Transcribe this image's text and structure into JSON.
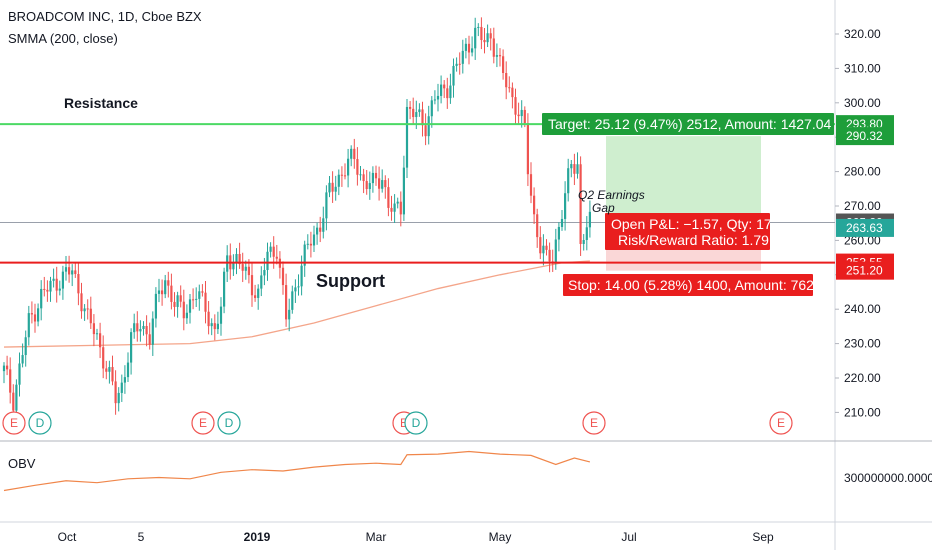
{
  "header": {
    "title": "BROADCOM INC, 1D, Cboe BZX",
    "indicator": "SMMA (200, close)"
  },
  "obv_panel": {
    "label": "OBV",
    "value_label": "300000000.0000"
  },
  "colors": {
    "up": "#26a69a",
    "down": "#ef5350",
    "resistance": "#4cd964",
    "support": "#e91e1e",
    "smma": "#f4a58a",
    "obv": "#f0864a",
    "target_fill": "#bfe8bf",
    "stop_fill": "#f8c9c9",
    "target_tag": "#1e9e3a",
    "stop_tag": "#e91e1e"
  },
  "annotations": {
    "resistance": "Resistance",
    "support": "Support",
    "target": "Target: 25.12 (9.47%) 2512, Amount: 1427.04",
    "pnl_line1": "Open P&L: −1.57, Qty: 17",
    "pnl_line2": "Risk/Reward Ratio: 1.79",
    "stop": "Stop: 14.00 (5.28%) 1400, Amount: 762",
    "earnings_line1": "Q2 Earnings",
    "earnings_line2": "Gap"
  },
  "events": [
    "E",
    "D",
    "E",
    "D",
    "E",
    "D",
    "E",
    "E"
  ],
  "chart_data": {
    "type": "candlestick",
    "title": "BROADCOM INC, 1D, Cboe BZX",
    "y_ticks": [
      210,
      220,
      230,
      240,
      250,
      260,
      270,
      280,
      290,
      300,
      310,
      320
    ],
    "y_tick_labels": [
      "210.00",
      "220.00",
      "230.00",
      "240.00",
      "250.00",
      "260.00",
      "270.00",
      "280.00",
      "290.00",
      "300.00",
      "310.00",
      "320.00"
    ],
    "x_tick_labels": [
      "Oct",
      "5",
      "2019",
      "Mar",
      "May",
      "Jul",
      "Sep"
    ],
    "price_tags": [
      {
        "value": 293.8,
        "label": "293.80",
        "color": "#1e9e3a"
      },
      {
        "value": 290.32,
        "label": "290.32",
        "color": "#1e9e3a"
      },
      {
        "value": 265.2,
        "label": "265.20",
        "color": "#555555"
      },
      {
        "value": 263.63,
        "label": "263.63",
        "color": "#26a69a"
      },
      {
        "value": 253.55,
        "label": "253.55",
        "color": "#e91e1e"
      },
      {
        "value": 251.2,
        "label": "251.20",
        "color": "#e91e1e"
      }
    ],
    "resistance": 293.8,
    "support": 253.55,
    "position": {
      "entry": 265.2,
      "target": 290.32,
      "stop": 251.2
    },
    "price_path": [
      [
        0,
        222
      ],
      [
        3,
        214
      ],
      [
        8,
        236
      ],
      [
        12,
        244
      ],
      [
        18,
        249
      ],
      [
        22,
        251
      ],
      [
        24,
        246
      ],
      [
        27,
        237
      ],
      [
        30,
        232
      ],
      [
        33,
        223
      ],
      [
        36,
        214
      ],
      [
        38,
        218
      ],
      [
        41,
        231
      ],
      [
        44,
        236
      ],
      [
        47,
        232
      ],
      [
        50,
        245
      ],
      [
        52,
        249
      ],
      [
        55,
        241
      ],
      [
        58,
        240
      ],
      [
        62,
        244
      ],
      [
        65,
        241
      ],
      [
        68,
        233
      ],
      [
        70,
        240
      ],
      [
        72,
        256
      ],
      [
        75,
        254
      ],
      [
        79,
        249
      ],
      [
        82,
        244
      ],
      [
        85,
        256
      ],
      [
        88,
        258
      ],
      [
        91,
        237
      ],
      [
        93,
        244
      ],
      [
        96,
        253
      ],
      [
        99,
        260
      ],
      [
        102,
        265
      ],
      [
        105,
        274
      ],
      [
        109,
        280
      ],
      [
        113,
        284
      ],
      [
        116,
        277
      ],
      [
        119,
        276
      ],
      [
        122,
        279
      ],
      [
        124,
        270
      ],
      [
        126,
        268
      ],
      [
        128,
        270
      ],
      [
        130,
        298
      ],
      [
        133,
        296
      ],
      [
        136,
        294
      ],
      [
        139,
        301
      ],
      [
        143,
        305
      ],
      [
        146,
        310
      ],
      [
        149,
        316
      ],
      [
        152,
        320
      ],
      [
        155,
        318
      ],
      [
        157,
        320
      ],
      [
        160,
        310
      ],
      [
        163,
        304
      ],
      [
        166,
        297
      ],
      [
        168,
        292
      ],
      [
        169,
        281
      ],
      [
        171,
        267
      ],
      [
        173,
        258
      ],
      [
        175,
        254
      ],
      [
        177,
        256
      ],
      [
        180,
        268
      ],
      [
        183,
        282
      ],
      [
        185,
        283
      ],
      [
        186,
        258
      ],
      [
        188,
        264
      ],
      [
        189,
        265.2
      ]
    ],
    "smma": [
      [
        0,
        229
      ],
      [
        60,
        230
      ],
      [
        80,
        232
      ],
      [
        100,
        236
      ],
      [
        120,
        241
      ],
      [
        140,
        246
      ],
      [
        160,
        250
      ],
      [
        180,
        253.5
      ],
      [
        189,
        254
      ]
    ],
    "obv": [
      [
        0,
        0.3
      ],
      [
        10,
        0.38
      ],
      [
        20,
        0.45
      ],
      [
        30,
        0.42
      ],
      [
        40,
        0.48
      ],
      [
        50,
        0.5
      ],
      [
        60,
        0.48
      ],
      [
        70,
        0.58
      ],
      [
        80,
        0.62
      ],
      [
        90,
        0.6
      ],
      [
        100,
        0.66
      ],
      [
        110,
        0.7
      ],
      [
        120,
        0.72
      ],
      [
        128,
        0.7
      ],
      [
        130,
        0.85
      ],
      [
        140,
        0.86
      ],
      [
        150,
        0.9
      ],
      [
        160,
        0.86
      ],
      [
        170,
        0.84
      ],
      [
        178,
        0.7
      ],
      [
        184,
        0.8
      ],
      [
        189,
        0.74
      ]
    ]
  }
}
